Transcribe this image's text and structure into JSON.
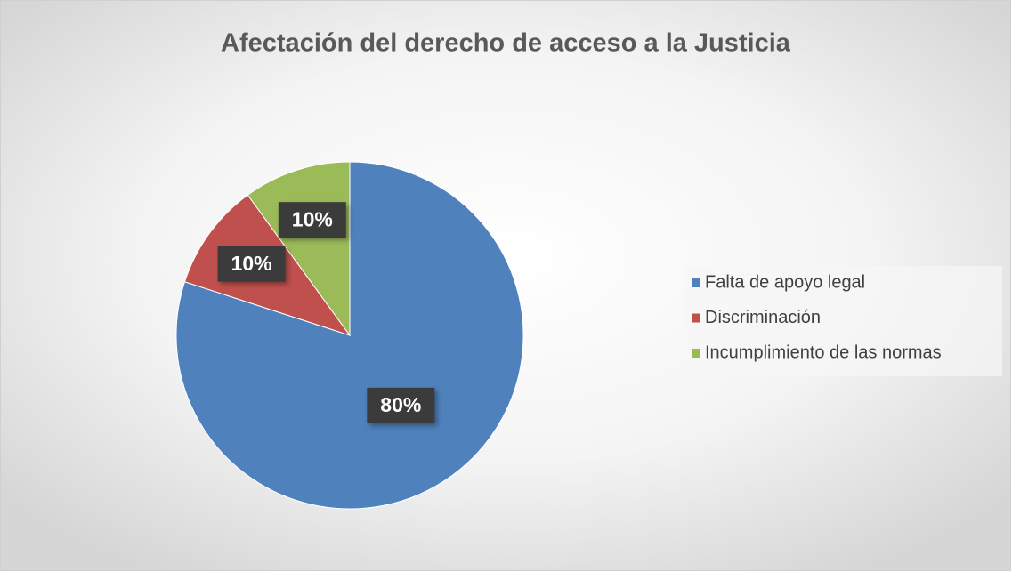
{
  "chart_data": {
    "type": "pie",
    "title": "Afectación del derecho de acceso a la Justicia",
    "categories": [
      "Falta de apoyo legal",
      "Discriminación",
      "Incumplimiento de las normas"
    ],
    "values": [
      80,
      10,
      10
    ],
    "value_labels": [
      "80%",
      "10%",
      "10%"
    ],
    "colors": [
      "#4f81bd",
      "#c0504d",
      "#9bbb59"
    ],
    "legend": "right"
  }
}
